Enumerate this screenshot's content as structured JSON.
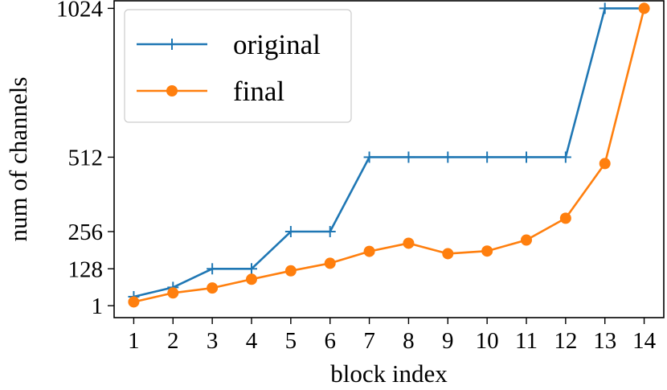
{
  "chart_data": {
    "type": "line",
    "title": "",
    "xlabel": "block index",
    "ylabel": "num of channels",
    "x": [
      1,
      2,
      3,
      4,
      5,
      6,
      7,
      8,
      9,
      10,
      11,
      12,
      13,
      14
    ],
    "xlim": [
      0.5,
      14.5
    ],
    "ylim": [
      -40,
      1050
    ],
    "yticks": [
      1,
      128,
      256,
      512,
      1024
    ],
    "ytick_labels": [
      "1",
      "128",
      "256",
      "512",
      "1024"
    ],
    "grid": false,
    "legend_position": "top-left",
    "series": [
      {
        "name": "original",
        "color": "#1f77b4",
        "marker": "plus",
        "values": [
          32,
          64,
          128,
          128,
          256,
          256,
          512,
          512,
          512,
          512,
          512,
          512,
          1024,
          1024
        ]
      },
      {
        "name": "final",
        "color": "#ff7f0e",
        "marker": "circle",
        "values": [
          14,
          45,
          62,
          92,
          121,
          147,
          188,
          216,
          180,
          189,
          227,
          302,
          490,
          1024
        ]
      }
    ]
  }
}
